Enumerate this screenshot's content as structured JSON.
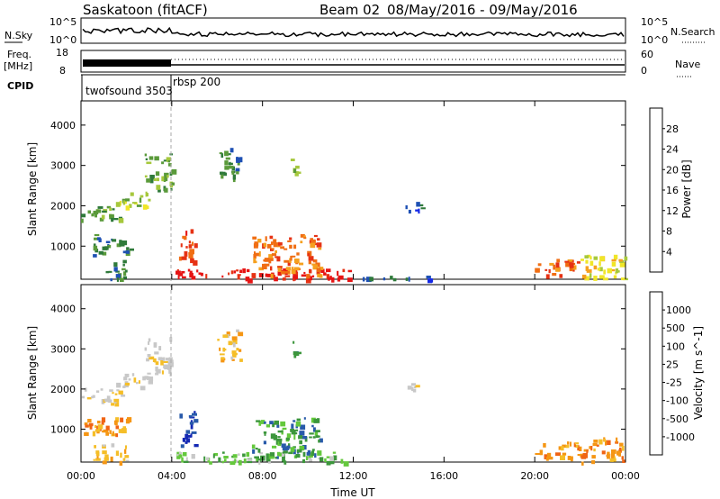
{
  "header": {
    "station": "Saskatoon (fitACF)",
    "beam": "Beam 02",
    "date_range": "08/May/2016 - 09/May/2016"
  },
  "top_panels": {
    "nsky": {
      "label": "N.Sky",
      "ticks": [
        "10^5",
        "10^0"
      ],
      "right_label": "N.Search",
      "right_ticks": [
        "10^5",
        "10^0"
      ]
    },
    "freq": {
      "label_top": "Freq.",
      "label_unit": "[MHz]",
      "ticks": [
        "18",
        "8"
      ],
      "right_label": "Nave",
      "right_ticks": [
        "60",
        "0"
      ]
    },
    "cpid": {
      "label": "CPID",
      "segments": [
        {
          "name": "twofsound 3503",
          "start_hour": 0,
          "end_hour": 4.0
        },
        {
          "name": "rbsp 200",
          "start_hour": 4.0,
          "end_hour": 24
        }
      ]
    }
  },
  "colors": {
    "power": [
      "#1428e6",
      "#1e50b4",
      "#2f7a3a",
      "#5a9a3a",
      "#a6c83c",
      "#f0e628",
      "#f5a01e",
      "#f06e14",
      "#e63214",
      "#e61414"
    ],
    "velocity": [
      "#e61414",
      "#f06414",
      "#f59614",
      "#f5be28",
      "#c8c8c8",
      "#c8c8c8",
      "#64c83c",
      "#3c963c",
      "#285aaa",
      "#1428b4"
    ]
  },
  "chart_data": [
    {
      "type": "heatmap",
      "name": "power",
      "title": "",
      "xlabel": "",
      "ylabel": "Slant Range [km]",
      "colorbar_label": "Power [dB]",
      "colorbar_ticks": [
        "4",
        "8",
        "12",
        "16",
        "20",
        "24",
        "28"
      ],
      "xlim": [
        0,
        24
      ],
      "ylim": [
        180,
        4600
      ],
      "yticks": [
        "1000",
        "2000",
        "3000",
        "4000"
      ],
      "xticks": [
        "00:00",
        "04:00",
        "08:00",
        "12:00",
        "16:00",
        "20:00",
        "00:00"
      ],
      "blobs": [
        {
          "x": [
            0.0,
            1.8
          ],
          "y": [
            1650,
            2050
          ],
          "level": 3
        },
        {
          "x": [
            1.5,
            3.0
          ],
          "y": [
            2000,
            2400
          ],
          "level": 4
        },
        {
          "x": [
            2.8,
            4.0
          ],
          "y": [
            2400,
            3300
          ],
          "level": 3
        },
        {
          "x": [
            0.5,
            2.2
          ],
          "y": [
            800,
            1300
          ],
          "level": 2
        },
        {
          "x": [
            1.0,
            2.0
          ],
          "y": [
            200,
            700
          ],
          "level": 2
        },
        {
          "x": [
            4.3,
            5.0
          ],
          "y": [
            600,
            1500
          ],
          "level": 8
        },
        {
          "x": [
            4.0,
            12.0
          ],
          "y": [
            190,
            450
          ],
          "level": 9
        },
        {
          "x": [
            7.5,
            10.5
          ],
          "y": [
            300,
            1300
          ],
          "level": 7
        },
        {
          "x": [
            6.0,
            7.0
          ],
          "y": [
            2700,
            3500
          ],
          "level": 2
        },
        {
          "x": [
            9.2,
            9.5
          ],
          "y": [
            2800,
            3200
          ],
          "level": 3
        },
        {
          "x": [
            14.3,
            15.2
          ],
          "y": [
            1900,
            2150
          ],
          "level": 1
        },
        {
          "x": [
            12.0,
            16.0
          ],
          "y": [
            190,
            280
          ],
          "level": 1
        },
        {
          "x": [
            20.0,
            22.0
          ],
          "y": [
            300,
            700
          ],
          "level": 7
        },
        {
          "x": [
            22.0,
            24.0
          ],
          "y": [
            190,
            800
          ],
          "level": 5
        }
      ]
    },
    {
      "type": "heatmap",
      "name": "velocity",
      "title": "",
      "xlabel": "Time UT",
      "ylabel": "Slant Range [km]",
      "colorbar_label": "Velocity [m s^-1]",
      "colorbar_ticks": [
        "-1000",
        "-500",
        "-100",
        "-25",
        "25",
        "100",
        "500",
        "1000"
      ],
      "xlim": [
        0,
        24
      ],
      "ylim": [
        180,
        4600
      ],
      "yticks": [
        "1000",
        "2000",
        "3000",
        "4000"
      ],
      "xticks": [
        "00:00",
        "04:00",
        "08:00",
        "12:00",
        "16:00",
        "20:00",
        "00:00"
      ],
      "blobs": [
        {
          "x": [
            0.0,
            1.8
          ],
          "y": [
            1650,
            2050
          ],
          "level": 4
        },
        {
          "x": [
            1.5,
            3.0
          ],
          "y": [
            2000,
            2400
          ],
          "level": 4
        },
        {
          "x": [
            2.8,
            4.0
          ],
          "y": [
            2400,
            3300
          ],
          "level": 4
        },
        {
          "x": [
            0.0,
            2.2
          ],
          "y": [
            800,
            1300
          ],
          "level": 2
        },
        {
          "x": [
            0.5,
            2.0
          ],
          "y": [
            200,
            700
          ],
          "level": 3
        },
        {
          "x": [
            4.3,
            5.0
          ],
          "y": [
            600,
            1500
          ],
          "level": 9
        },
        {
          "x": [
            4.0,
            12.0
          ],
          "y": [
            190,
            450
          ],
          "level": 6
        },
        {
          "x": [
            7.5,
            10.5
          ],
          "y": [
            300,
            1300
          ],
          "level": 7
        },
        {
          "x": [
            6.0,
            7.0
          ],
          "y": [
            2700,
            3500
          ],
          "level": 3
        },
        {
          "x": [
            9.2,
            9.5
          ],
          "y": [
            2800,
            3200
          ],
          "level": 7
        },
        {
          "x": [
            14.3,
            15.2
          ],
          "y": [
            1900,
            2150
          ],
          "level": 4
        },
        {
          "x": [
            20.0,
            22.0
          ],
          "y": [
            300,
            700
          ],
          "level": 2
        },
        {
          "x": [
            22.0,
            24.0
          ],
          "y": [
            190,
            800
          ],
          "level": 2
        }
      ]
    }
  ]
}
